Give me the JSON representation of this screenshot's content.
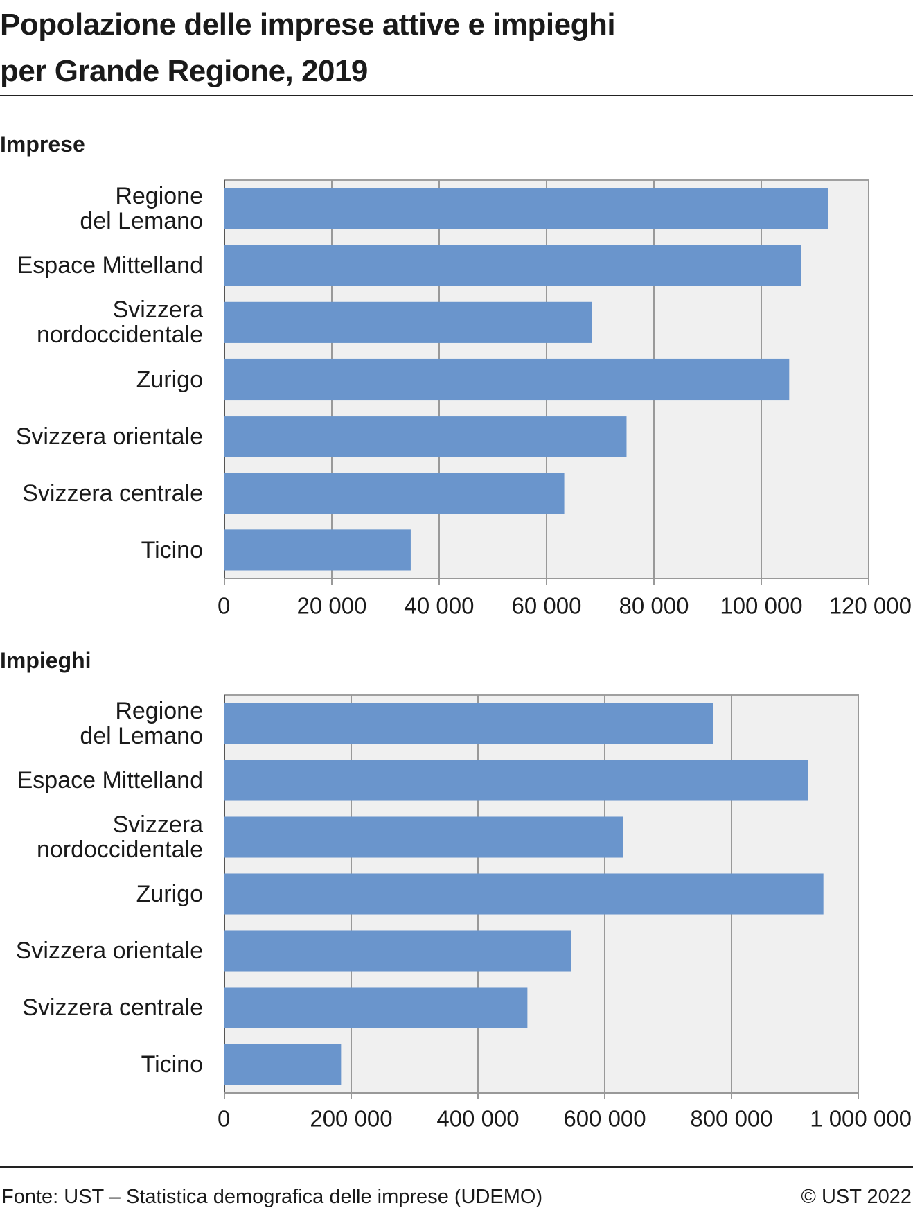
{
  "title": "Popolazione delle imprese attive e impieghi\nper Grande Regione, 2019",
  "source": "Fonte: UST – Statistica demografica delle imprese (UDEMO)",
  "copyright": "© UST 2022",
  "chart_data": [
    {
      "type": "bar",
      "orientation": "horizontal",
      "subtitle": "Imprese",
      "categories": [
        "Regione\ndel Lemano",
        "Espace Mittelland",
        "Svizzera\nnordoccidentale",
        "Zurigo",
        "Svizzera orientale",
        "Svizzera centrale",
        "Ticino"
      ],
      "values": [
        112500,
        107400,
        68500,
        105200,
        74900,
        63300,
        34700
      ],
      "color": "#6a95cc",
      "grid": true,
      "xlim": [
        0,
        120000
      ],
      "xticks": [
        0,
        {
          "value": 20000,
          "label": "20 000"
        },
        {
          "value": 40000,
          "label": "40 000"
        },
        {
          "value": 60000,
          "label": "60 000"
        },
        {
          "value": 80000,
          "label": "80 000"
        },
        {
          "value": 100000,
          "label": "100 000"
        },
        {
          "value": 120000,
          "label": "120 000"
        }
      ]
    },
    {
      "type": "bar",
      "orientation": "horizontal",
      "subtitle": "Impieghi",
      "categories": [
        "Regione\ndel Lemano",
        "Espace Mittelland",
        "Svizzera\nnordoccidentale",
        "Zurigo",
        "Svizzera orientale",
        "Svizzera centrale",
        "Ticino"
      ],
      "values": [
        771000,
        921000,
        629000,
        945000,
        547000,
        478000,
        184000
      ],
      "color": "#6a95cc",
      "grid": true,
      "xlim": [
        0,
        1000000
      ],
      "xticks": [
        0,
        {
          "value": 200000,
          "label": "200 000"
        },
        {
          "value": 400000,
          "label": "400 000"
        },
        {
          "value": 600000,
          "label": "600 000"
        },
        {
          "value": 800000,
          "label": "800 000"
        },
        {
          "value": 1000000,
          "label": "1 000 000"
        }
      ]
    }
  ]
}
